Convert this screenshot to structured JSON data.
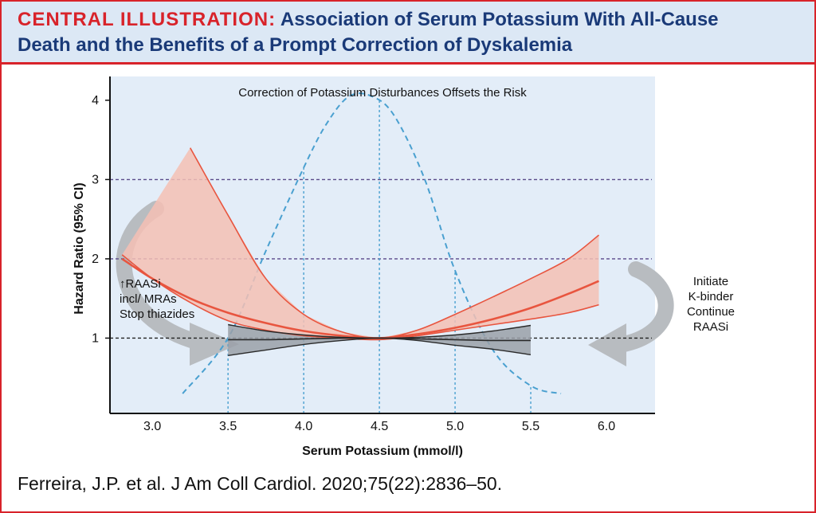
{
  "header": {
    "title_prefix": "CENTRAL ILLUSTRATION:",
    "title_line1_rest": "Association of Serum Potassium With All-Cause",
    "title_line2": "Death and the Benefits of a Prompt Correction of Dyskalemia"
  },
  "citation": "Ferreira, J.P. et al. J Am Coll Cardiol. 2020;75(22):2836–50.",
  "colors": {
    "accent_red": "#d8232a",
    "title_blue": "#1a3a78",
    "panel_bg": "#e3edf8",
    "hr_curve": "#e8553f",
    "hr_band": "#f4c0b4",
    "corrected_curve": "#2a2a2a",
    "corrected_band": "#9aa0a8",
    "distribution": "#4aa0d0",
    "reference_line_purple": "#5a4a8a",
    "arrow_gray": "#b8bcc0"
  },
  "chart_data": {
    "type": "line",
    "annotation_top": "Correction of Potassium Disturbances Offsets the Risk",
    "xlabel": "Serum Potassium (mmol/l)",
    "ylabel": "Hazard Ratio (95% CI)",
    "x_ticks": [
      "3.0",
      "3.5",
      "4.0",
      "4.5",
      "5.0",
      "5.5",
      "6.0"
    ],
    "y_ticks": [
      "1",
      "2",
      "3",
      "4"
    ],
    "xlim": [
      2.72,
      6.3
    ],
    "ylim": [
      0.05,
      4.3
    ],
    "reference_lines_y": [
      1,
      2,
      3
    ],
    "vertical_markers_x": [
      3.5,
      4.0,
      4.5,
      5.0,
      5.5
    ],
    "series": [
      {
        "role": "hazard_ratio_uncorrected",
        "x": [
          2.8,
          3.0,
          3.25,
          3.5,
          3.75,
          4.0,
          4.25,
          4.5,
          4.75,
          5.0,
          5.25,
          5.5,
          5.75,
          5.95
        ],
        "y": [
          2.0,
          1.75,
          1.5,
          1.32,
          1.19,
          1.09,
          1.03,
          1.0,
          1.05,
          1.13,
          1.24,
          1.38,
          1.56,
          1.72
        ]
      },
      {
        "role": "hazard_ratio_uncorrected_upper",
        "x": [
          3.25,
          3.5,
          3.75,
          4.0,
          4.25,
          4.5,
          4.75,
          5.0,
          5.25,
          5.5,
          5.75,
          5.95
        ],
        "y": [
          3.4,
          2.55,
          1.75,
          1.3,
          1.08,
          1.0,
          1.1,
          1.3,
          1.52,
          1.75,
          2.0,
          2.3
        ]
      },
      {
        "role": "hazard_ratio_uncorrected_lower",
        "x": [
          2.8,
          3.0,
          3.25,
          3.5,
          3.75,
          4.0,
          4.25,
          4.5,
          4.75,
          5.0,
          5.25,
          5.5,
          5.75,
          5.95
        ],
        "y": [
          2.05,
          1.75,
          1.45,
          1.22,
          1.1,
          1.03,
          1.0,
          0.98,
          1.03,
          1.1,
          1.17,
          1.24,
          1.32,
          1.42
        ]
      },
      {
        "role": "hazard_ratio_corrected",
        "x": [
          3.5,
          3.75,
          4.0,
          4.25,
          4.5,
          4.75,
          5.0,
          5.25,
          5.5
        ],
        "y": [
          0.98,
          0.98,
          0.99,
          1.0,
          1.0,
          0.99,
          0.98,
          0.97,
          0.97
        ]
      },
      {
        "role": "hazard_ratio_corrected_upper",
        "x": [
          3.5,
          3.75,
          4.0,
          4.25,
          4.5,
          4.75,
          5.0,
          5.25,
          5.5
        ],
        "y": [
          1.17,
          1.09,
          1.04,
          1.01,
          1.0,
          1.01,
          1.04,
          1.09,
          1.16
        ]
      },
      {
        "role": "hazard_ratio_corrected_lower",
        "x": [
          3.5,
          3.75,
          4.0,
          4.25,
          4.5,
          4.75,
          5.0,
          5.25,
          5.5
        ],
        "y": [
          0.78,
          0.85,
          0.92,
          0.97,
          1.0,
          0.97,
          0.91,
          0.86,
          0.79
        ]
      },
      {
        "role": "potassium_distribution",
        "x": [
          3.2,
          3.5,
          3.75,
          4.0,
          4.15,
          4.3,
          4.45,
          4.6,
          4.8,
          5.0,
          5.25,
          5.5,
          5.7
        ],
        "y": [
          0.3,
          1.0,
          2.1,
          3.15,
          3.7,
          4.05,
          4.05,
          3.8,
          3.0,
          1.85,
          0.85,
          0.4,
          0.3
        ]
      }
    ],
    "annotations": {
      "left": [
        "↑RAASi",
        "incl/ MRAs",
        "Stop thiazides"
      ],
      "right": [
        "Initiate",
        "K-binder",
        "Continue",
        "RAASi"
      ]
    }
  }
}
